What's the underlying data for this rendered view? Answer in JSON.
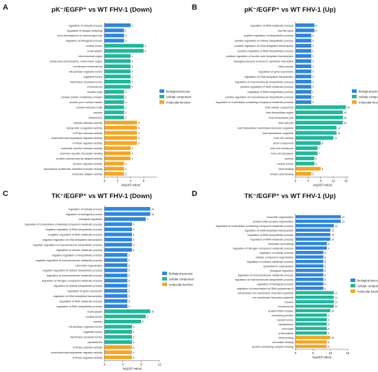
{
  "colors": {
    "bp": "#2e86de",
    "cc": "#20b89a",
    "mf": "#f5a623",
    "axis": "#555555"
  },
  "legend_items": [
    "biological process",
    "cellular component",
    "molecular function"
  ],
  "chart_data": [
    {
      "panel_label": "A",
      "title": "pK⁻/EGFP⁺  vs  WT FHV-1 (Down)",
      "type": "bar",
      "orientation": "horizontal",
      "xlabel": "-log10(P-value)",
      "xticks": [
        0,
        2,
        4,
        6
      ],
      "xlim": [
        0,
        8
      ],
      "legend": "right",
      "categories": [
        "regulation of cellular process",
        "regulation of isotype switching",
        "lens development in camera-type eye",
        "regulation of biological process",
        "nuclear lumen",
        "nucleoplasm",
        "chromosomal region",
        "condensed chromosome, centromeric region",
        "condensed chromosome",
        "intracellular organelle lumen",
        "organelle lumen",
        "membrane-enclosed lumen",
        "chromosome",
        "nuclear body",
        "nuclear protein-containing complex",
        "nuclear pore nuclear basket",
        "nuclear inclusion body",
        "nucleus",
        "kinetochore",
        "enzyme activator activity",
        "transporter coregulator activity",
        "GTPase activator activity",
        "nucleoside-triphosphatase regulator activity",
        "GTPase regulator activity",
        "molecular function activator activity",
        "promoter-specific chromatin binding",
        "protein-macromolecule adaptor activity",
        "enzyme regulator activity",
        "peroxisome proliferator activated receptor binding",
        "molecular adaptor activity"
      ],
      "values": [
        4,
        3,
        3,
        3,
        6,
        6,
        4,
        4,
        4,
        4,
        4,
        4,
        4,
        3,
        3,
        3,
        3,
        3,
        3,
        5,
        5,
        5,
        5,
        5,
        4,
        4,
        4,
        3,
        3,
        3
      ],
      "groups": [
        "bp",
        "bp",
        "bp",
        "bp",
        "cc",
        "cc",
        "cc",
        "cc",
        "cc",
        "cc",
        "cc",
        "cc",
        "cc",
        "cc",
        "cc",
        "cc",
        "cc",
        "cc",
        "cc",
        "mf",
        "mf",
        "mf",
        "mf",
        "mf",
        "mf",
        "mf",
        "mf",
        "mf",
        "mf",
        "mf"
      ]
    },
    {
      "panel_label": "B",
      "title": "pK⁻/EGFP⁺  vs  WT FHV-1 (Up)",
      "type": "bar",
      "orientation": "horizontal",
      "xlabel": "-log10(P-value)",
      "xticks": [
        0,
        4,
        8,
        12,
        16
      ],
      "xlim": [
        0,
        17
      ],
      "legend": "right",
      "categories": [
        "regulation of RNA metabolic process",
        "viral life cycle",
        "positive regulation of biosynthetic process",
        "positive regulation of cellular biosynthetic process",
        "positive regulation of DNA-templated transcription",
        "positive regulation of RNA biosynthetic process",
        "positive regulation of nucleic acid-templated transcription",
        "biological process involved in symbiotic interaction",
        "viral process",
        "regulation of gene expression",
        "regulation of DNA-templated transcription",
        "regulation of macromolecule biosynthetic process",
        "positive regulation of RNA metabolic process",
        "regulation of RNA biosynthetic process",
        "positive regulation of macromolecule biosynthetic process",
        "regulation of nucleobase-containing compound metabolic process",
        "host cellular component",
        "host intracellular region",
        "host intracellular part",
        "host cell part",
        "host intracellular membrane-bounded organelle",
        "host intracellular organelle",
        "host cell nucleus",
        "virion component",
        "host cell membrane",
        "host cell cytoplasm",
        "nucleus",
        "nuclear lumen",
        "DNA binding",
        "nucleic acid binding"
      ],
      "values": [
        6,
        6,
        5,
        5,
        5,
        5,
        5,
        5,
        5,
        5,
        5,
        5,
        5,
        5,
        5,
        5,
        16,
        15,
        15,
        15,
        13,
        13,
        12,
        8,
        7,
        7,
        6,
        6,
        8,
        5
      ],
      "groups": [
        "bp",
        "bp",
        "bp",
        "bp",
        "bp",
        "bp",
        "bp",
        "bp",
        "bp",
        "bp",
        "bp",
        "bp",
        "bp",
        "bp",
        "bp",
        "bp",
        "cc",
        "cc",
        "cc",
        "cc",
        "cc",
        "cc",
        "cc",
        "cc",
        "cc",
        "cc",
        "cc",
        "cc",
        "mf",
        "mf"
      ]
    },
    {
      "panel_label": "C",
      "title": "TK⁻/EGFP⁺  vs  WT FHV-1 (Down)",
      "type": "bar",
      "orientation": "horizontal",
      "xlabel": "-log10(P-value)",
      "xticks": [
        0,
        4,
        8,
        12
      ],
      "xlim": [
        0,
        12
      ],
      "legend": "right",
      "categories": [
        "regulation of cellular process",
        "regulation of biological process",
        "biological regulation",
        "regulation of nucleobase-containing compound metabolic process",
        "negative regulation of RNA biosynthetic process",
        "negative regulation of RNA metabolic process",
        "negative regulation of DNA-templated transcription",
        "negative regulation of macromolecule biosynthetic process",
        "regulation of cellular metabolic process",
        "negative regulation of biosynthetic process",
        "negative regulation of macromolecule metabolic process",
        "chromatin organization",
        "negative regulation of cellular biosynthetic process",
        "regulation of macromolecule metabolic process",
        "regulation of nitrogen compound metabolic process",
        "regulation of cellular biosynthetic process",
        "regulation of gene expression",
        "regulation of DNA-templated transcription",
        "regulation of RNA metabolic process",
        "regulation of RNA biosynthetic process",
        "nucleoplasm",
        "nuclear lumen",
        "nucleus",
        "intracellular organelle lumen",
        "organelle lumen",
        "membrane-enclosed lumen",
        "cytoskeleton",
        "GTPase activator activity",
        "nucleoside-triphosphatase regulator activity",
        "GTPase regulator activity"
      ],
      "values": [
        10,
        10,
        9,
        6,
        6,
        6,
        6,
        6,
        6,
        5,
        5,
        5,
        5,
        5,
        5,
        5,
        5,
        5,
        5,
        5,
        10,
        9,
        8,
        6,
        6,
        6,
        6,
        6,
        6,
        6
      ],
      "groups": [
        "bp",
        "bp",
        "bp",
        "bp",
        "bp",
        "bp",
        "bp",
        "bp",
        "bp",
        "bp",
        "bp",
        "bp",
        "bp",
        "bp",
        "bp",
        "bp",
        "bp",
        "bp",
        "bp",
        "bp",
        "cc",
        "cc",
        "cc",
        "cc",
        "cc",
        "cc",
        "cc",
        "mf",
        "mf",
        "mf"
      ]
    },
    {
      "panel_label": "D",
      "title": "TK⁻/EGFP⁺  vs  WT FHV-1 (Up)",
      "type": "bar",
      "orientation": "horizontal",
      "xlabel": "-log10(P-value)",
      "xticks": [
        0,
        5,
        10,
        15
      ],
      "xlim": [
        0,
        15
      ],
      "legend": "right",
      "categories": [
        "chromatin organization",
        "protein-DNA complex organization",
        "regulation of nucleobase-containing compound metabolic process",
        "regulation of DNA-templated transcription",
        "regulation of RNA biosynthetic process",
        "regulation of RNA metabolic process",
        "chromatin remodeling",
        "regulation of nitrogen compound metabolic process",
        "regulation of cellular process",
        "cellular component organization",
        "regulation of primary metabolic process",
        "cytoskeleton organization",
        "biological regulation",
        "regulation of macromolecule metabolic process",
        "regulation of macromolecule biosynthetic process",
        "regulation of biological process",
        "regulation of transcription by RNA polymerase II",
        "intracellular non-membrane-bounded organelle",
        "non-membrane-bounded organelle",
        "nucleus",
        "chromosome",
        "protein-DNA complex",
        "anchoring junction",
        "nuclear lumen",
        "cytoskeleton",
        "chromatin",
        "nucleoplasm",
        "DNA binding",
        "chromatin binding",
        "protein-containing complex binding"
      ],
      "values": [
        13,
        13,
        11,
        10,
        10,
        10,
        9,
        9,
        8,
        8,
        8,
        8,
        8,
        8,
        8,
        8,
        8,
        11,
        11,
        11,
        11,
        10,
        9,
        9,
        9,
        9,
        9,
        10,
        9,
        9
      ],
      "groups": [
        "bp",
        "bp",
        "bp",
        "bp",
        "bp",
        "bp",
        "bp",
        "bp",
        "bp",
        "bp",
        "bp",
        "bp",
        "bp",
        "bp",
        "bp",
        "bp",
        "bp",
        "cc",
        "cc",
        "cc",
        "cc",
        "cc",
        "cc",
        "cc",
        "cc",
        "cc",
        "cc",
        "mf",
        "mf",
        "mf"
      ]
    }
  ]
}
